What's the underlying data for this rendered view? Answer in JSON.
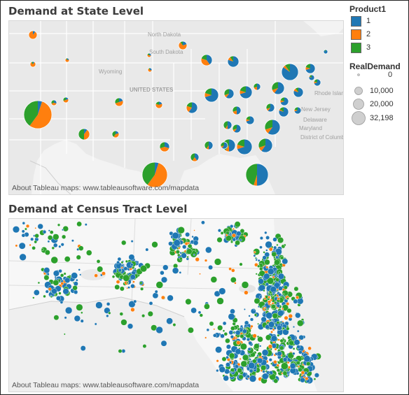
{
  "top_map": {
    "title": "Demand at State Level",
    "attribution": "About Tableau maps: www.tableausoftware.com/mapdata",
    "labels": [
      "North Dakota",
      "South Dakota",
      "Wyoming",
      "UNITED STATES",
      "Rhode Islan",
      "New Jersey",
      "Delaware",
      "Maryland",
      "District of Columbia"
    ]
  },
  "bottom_map": {
    "title": "Demand at Census Tract Level",
    "attribution": "About Tableau maps: www.tableausoftware.com/mapdata"
  },
  "legend": {
    "color_title": "Product1",
    "products": [
      {
        "label": "1",
        "color": "#1f77b4"
      },
      {
        "label": "2",
        "color": "#ff7f0e"
      },
      {
        "label": "3",
        "color": "#2ca02c"
      }
    ],
    "size_title": "RealDemand",
    "sizes": [
      {
        "label": "0",
        "value": 0
      },
      {
        "label": "10,000",
        "value": 10000
      },
      {
        "label": "20,000",
        "value": 20000
      },
      {
        "label": "32,198",
        "value": 32198
      }
    ]
  }
}
